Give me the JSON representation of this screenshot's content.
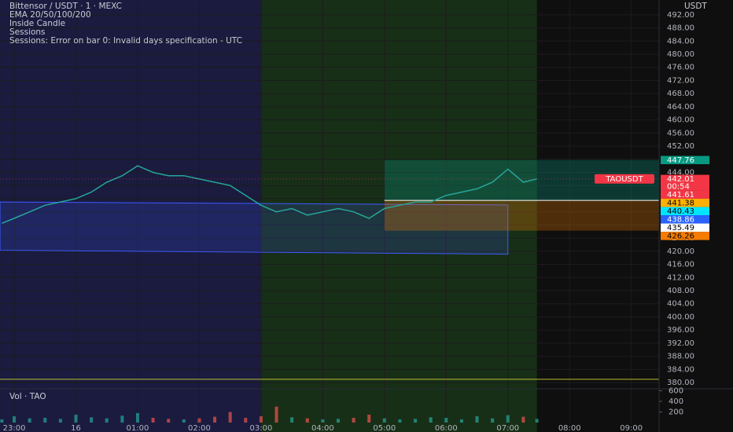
{
  "header": {
    "symbol": "Bittensor / USDT · 1 · MEXC",
    "indicators": [
      "EMA 20/50/100/200",
      "Inside Candle",
      "Sessions",
      "Sessions: Error on bar 0: Invalid days specification - UTC"
    ],
    "currency": "USDT"
  },
  "chart_data": {
    "type": "line",
    "x": [
      22.8,
      23,
      23.25,
      23.5,
      23.75,
      24,
      24.25,
      24.5,
      24.75,
      25,
      25.25,
      25.5,
      25.75,
      26,
      26.25,
      26.5,
      26.75,
      27,
      27.25,
      27.5,
      27.75,
      28,
      28.25,
      28.5,
      28.75,
      29,
      29.25,
      29.5,
      29.75,
      30,
      30.25,
      30.5,
      30.75,
      31,
      31.25,
      31.47
    ],
    "series": [
      {
        "name": "TAOUSDT",
        "color": "#26a69a",
        "values": [
          428.5,
          430,
          432,
          434,
          435,
          436,
          438,
          441,
          443,
          446,
          444,
          443,
          443,
          442,
          441,
          440,
          437,
          434,
          432,
          433,
          431,
          432,
          433,
          432,
          430,
          433,
          434,
          435,
          435,
          437,
          438,
          439,
          441,
          445,
          441,
          442.01
        ]
      }
    ],
    "xlim": [
      22.77,
      33.45
    ],
    "xticks": [
      {
        "value": 23,
        "label": "23:00"
      },
      {
        "value": 24,
        "label": "16"
      },
      {
        "value": 25,
        "label": "01:00"
      },
      {
        "value": 26,
        "label": "02:00"
      },
      {
        "value": 27,
        "label": "03:00"
      },
      {
        "value": 28,
        "label": "04:00"
      },
      {
        "value": 29,
        "label": "05:00"
      },
      {
        "value": 30,
        "label": "06:00"
      },
      {
        "value": 31,
        "label": "07:00"
      },
      {
        "value": 32,
        "label": "08:00"
      },
      {
        "value": 33,
        "label": "09:00"
      }
    ],
    "ylim": [
      378.1,
      496.5
    ],
    "yticks": [
      {
        "value": 380,
        "label": "380.00"
      },
      {
        "value": 384,
        "label": "384.00"
      },
      {
        "value": 388,
        "label": "388.00"
      },
      {
        "value": 392,
        "label": "392.00"
      },
      {
        "value": 396,
        "label": "396.00"
      },
      {
        "value": 400,
        "label": "400.00"
      },
      {
        "value": 404,
        "label": "404.00"
      },
      {
        "value": 408,
        "label": "408.00"
      },
      {
        "value": 412,
        "label": "412.00"
      },
      {
        "value": 416,
        "label": "416.00"
      },
      {
        "value": 420,
        "label": "420.00"
      },
      {
        "value": 424,
        "label": "424.00"
      },
      {
        "value": 428,
        "label": "428.00"
      },
      {
        "value": 432,
        "label": "432.00"
      },
      {
        "value": 436,
        "label": "436.00"
      },
      {
        "value": 440,
        "label": "440.00"
      },
      {
        "value": 444,
        "label": "444.00"
      },
      {
        "value": 448,
        "label": "448.00"
      },
      {
        "value": 452,
        "label": "452.00"
      },
      {
        "value": 456,
        "label": "456.00"
      },
      {
        "value": 460,
        "label": "460.00"
      },
      {
        "value": 464,
        "label": "464.00"
      },
      {
        "value": 468,
        "label": "468.00"
      },
      {
        "value": 472,
        "label": "472.00"
      },
      {
        "value": 476,
        "label": "476.00"
      },
      {
        "value": 480,
        "label": "480.00"
      },
      {
        "value": 484,
        "label": "484.00"
      },
      {
        "value": 488,
        "label": "488.00"
      },
      {
        "value": 492,
        "label": "492.00"
      }
    ],
    "grid": true,
    "sessions": [
      {
        "start": 22.77,
        "end": 27,
        "color": "#1c1d45"
      },
      {
        "start": 27,
        "end": 31.47,
        "color": "#1a3318"
      }
    ],
    "channel": {
      "x": [
        22.77,
        31
      ],
      "upper": [
        435,
        434.1
      ],
      "lower": [
        420.3,
        419.1
      ],
      "color": "#3d5afe"
    },
    "position_start": 29,
    "alert_line": {
      "value": 381,
      "color": "#bdbd34"
    },
    "price_labels": [
      {
        "value": 447.76,
        "color": "#089981",
        "text_color": "#ffffff"
      },
      {
        "value": 442.01,
        "color": "#f23645",
        "text_color": "#ffffff",
        "countdown": "00:54"
      },
      {
        "value": 441.61,
        "color": "#f23645",
        "text_color": "#ffffff"
      },
      {
        "value": 441.38,
        "color": "#ffb000",
        "text_color": "#000000"
      },
      {
        "value": 440.43,
        "color": "#00e5ff",
        "text_color": "#000000"
      },
      {
        "value": 438.86,
        "color": "#2962ff",
        "text_color": "#ffffff"
      },
      {
        "value": 435.49,
        "color": "#ffffff",
        "text_color": "#000000"
      },
      {
        "value": 426.26,
        "color": "#f57c00",
        "text_color": "#000000"
      }
    ],
    "volume": {
      "name": "Vol · TAO",
      "values": [
        60,
        120,
        80,
        90,
        70,
        150,
        100,
        80,
        130,
        180,
        90,
        70,
        60,
        80,
        110,
        200,
        90,
        120,
        300,
        100,
        80,
        60,
        70,
        90,
        150,
        80,
        60,
        70,
        100,
        90,
        60,
        120,
        80,
        140,
        110,
        70
      ],
      "ylim": [
        0,
        600
      ],
      "yticks": [
        200,
        400,
        600
      ]
    }
  }
}
